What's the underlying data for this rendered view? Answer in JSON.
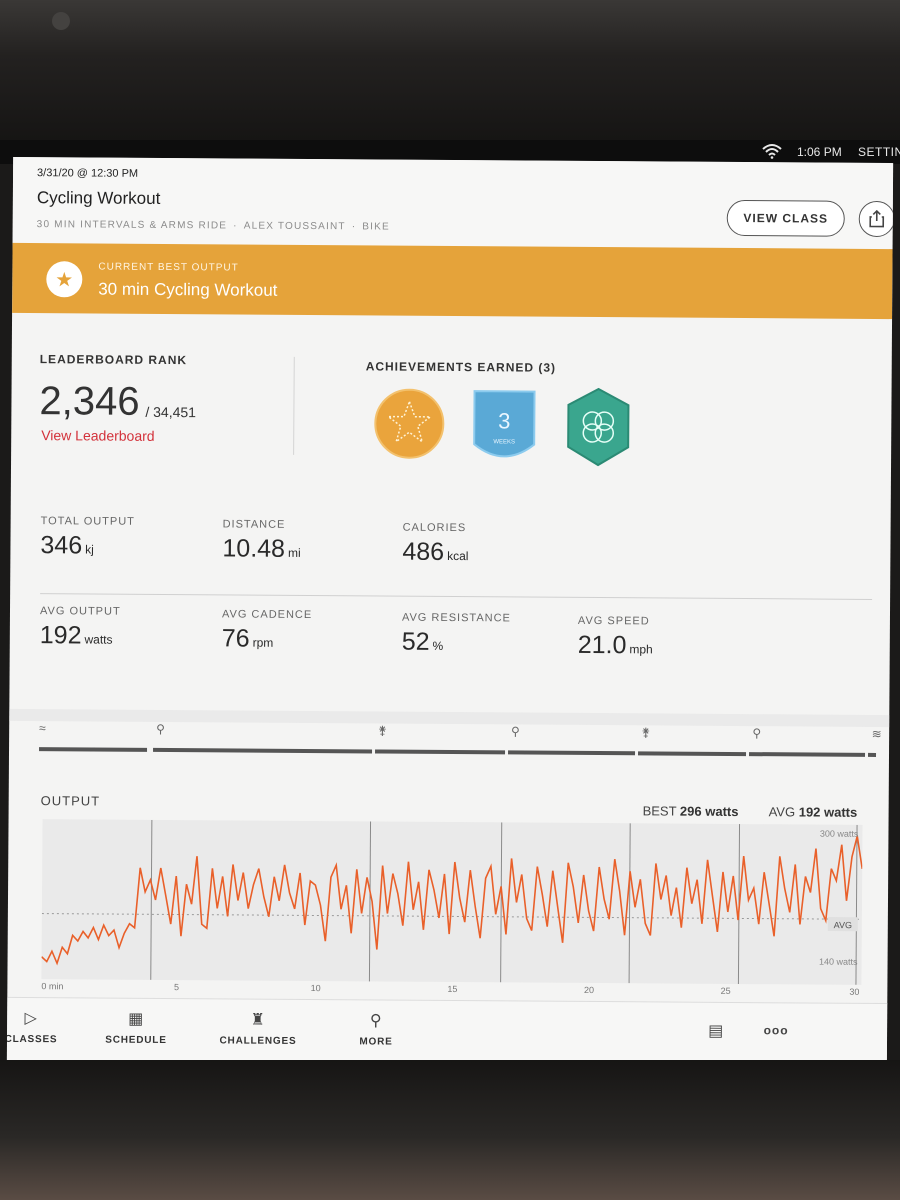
{
  "status_bar": {
    "time": "1:06 PM",
    "settings": "SETTINGS"
  },
  "header": {
    "date": "3/31/20 @ 12:30 PM",
    "title": "Cycling Workout",
    "class_name": "30 MIN INTERVALS & ARMS RIDE",
    "instructor": "ALEX TOUSSAINT",
    "type": "BIKE",
    "sep": "·",
    "view_class_label": "VIEW CLASS"
  },
  "banner": {
    "label": "CURRENT BEST OUTPUT",
    "title": "30 min Cycling Workout",
    "icon": "star-icon"
  },
  "leaderboard": {
    "label": "LEADERBOARD RANK",
    "rank": "2,346",
    "total": "/ 34,451",
    "link": "View Leaderboard"
  },
  "achievements": {
    "label": "ACHIEVEMENTS EARNED (3)",
    "badges": [
      {
        "name": "star-badge",
        "color": "#eaa43c"
      },
      {
        "name": "streak-badge",
        "text": "3",
        "sub": "WEEKS",
        "color": "#5aa9d6"
      },
      {
        "name": "rings-badge",
        "color": "#3aa68e"
      }
    ]
  },
  "metrics": {
    "total_output": {
      "label": "TOTAL OUTPUT",
      "value": "346",
      "unit": "kj"
    },
    "distance": {
      "label": "DISTANCE",
      "value": "10.48",
      "unit": "mi"
    },
    "calories": {
      "label": "CALORIES",
      "value": "486",
      "unit": "kcal"
    },
    "avg_output": {
      "label": "AVG OUTPUT",
      "value": "192",
      "unit": "watts"
    },
    "avg_cadence": {
      "label": "AVG CADENCE",
      "value": "76",
      "unit": "rpm"
    },
    "avg_resistance": {
      "label": "AVG RESISTANCE",
      "value": "52",
      "unit": "%"
    },
    "avg_speed": {
      "label": "AVG SPEED",
      "value": "21.0",
      "unit": "mph"
    }
  },
  "output": {
    "label": "OUTPUT",
    "best_label": "BEST",
    "best_value": "296 watts",
    "avg_label": "AVG",
    "avg_value": "192 watts",
    "line_color": "#e9602a"
  },
  "chart_data": {
    "type": "line",
    "xlim": [
      0,
      30
    ],
    "x_ticks": [
      "0 min",
      "5",
      "10",
      "15",
      "20",
      "25",
      "30"
    ],
    "y_labels": [
      "300 watts",
      "140 watts"
    ],
    "avg_label": "AVG",
    "avg_value": 192,
    "ylim": [
      110,
      310
    ],
    "segment_boundaries": [
      4,
      12,
      16.8,
      21.5,
      25.5,
      29.8
    ],
    "series": [
      {
        "values": [
          138,
          132,
          145,
          130,
          150,
          142,
          165,
          158,
          170,
          162,
          175,
          160,
          178,
          165,
          172,
          150,
          168,
          180,
          175,
          250,
          220,
          235,
          210,
          250,
          215,
          180,
          240,
          165,
          230,
          205,
          265,
          180,
          175,
          250,
          200,
          240,
          190,
          255,
          210,
          245,
          200,
          230,
          250,
          215,
          190,
          240,
          210,
          255,
          220,
          200,
          245,
          180,
          235,
          230,
          205,
          160,
          240,
          255,
          200,
          230,
          170,
          250,
          195,
          240,
          210,
          150,
          255,
          195,
          245,
          220,
          180,
          260,
          200,
          235,
          175,
          250,
          225,
          190,
          245,
          170,
          260,
          215,
          185,
          250,
          205,
          165,
          240,
          255,
          195,
          230,
          170,
          265,
          210,
          245,
          190,
          175,
          255,
          220,
          180,
          250,
          205,
          160,
          260,
          230,
          185,
          245,
          200,
          175,
          255,
          215,
          190,
          265,
          225,
          170,
          250,
          205,
          240,
          185,
          170,
          260,
          215,
          245,
          195,
          230,
          180,
          255,
          210,
          240,
          185,
          265,
          220,
          175,
          250,
          200,
          245,
          190,
          270,
          215,
          230,
          185,
          250,
          210,
          170,
          270,
          230,
          200,
          260,
          185,
          245,
          225,
          280,
          205,
          190,
          255,
          240,
          285,
          215,
          270,
          296,
          255
        ]
      }
    ]
  },
  "segments": [
    {
      "icon": "warmup-icon",
      "glyph": "≈"
    },
    {
      "icon": "cycling-icon",
      "glyph": "⚲"
    },
    {
      "icon": "arms-icon",
      "glyph": "⚵"
    },
    {
      "icon": "cycling-icon",
      "glyph": "⚲"
    },
    {
      "icon": "arms-icon",
      "glyph": "⚵"
    },
    {
      "icon": "cycling-icon",
      "glyph": "⚲"
    },
    {
      "icon": "cooldown-icon",
      "glyph": "≋"
    }
  ],
  "nav": {
    "classes": "CLASSES",
    "schedule": "SCHEDULE",
    "challenges": "CHALLENGES",
    "more": "MORE",
    "menu_glyph": "▤",
    "dots_glyph": "ooo"
  }
}
